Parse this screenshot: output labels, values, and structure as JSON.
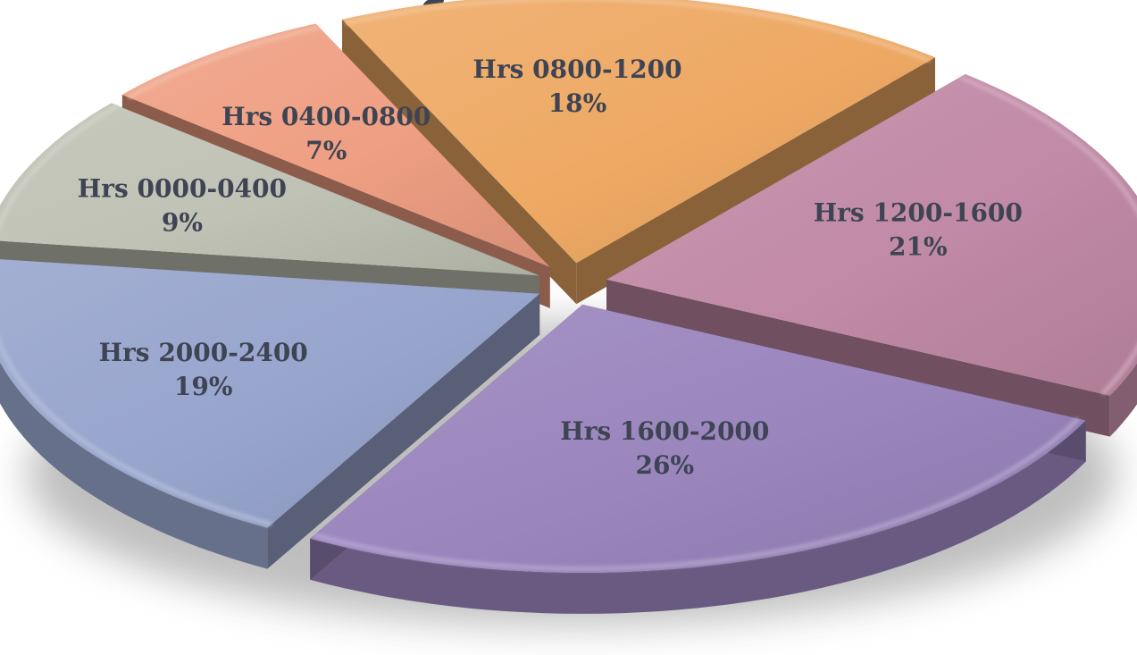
{
  "chart_data": {
    "type": "pie",
    "title": "",
    "categories": [
      "Hrs 1200-1600",
      "Hrs 1600-2000",
      "Hrs 2000-2400",
      "Hrs 0000-0400",
      "Hrs 0400-0800",
      "Hrs 0800-1200"
    ],
    "values": [
      21,
      26,
      19,
      9,
      7,
      18
    ],
    "value_labels": [
      "21%",
      "26%",
      "19%",
      "9%",
      "7%",
      "18%"
    ],
    "colors": [
      "#c18aa6",
      "#9a85bd",
      "#97a4cc",
      "#bfc2b4",
      "#ef9f83",
      "#eea964"
    ],
    "style": "3d-exploded",
    "start_angle_deg": -50,
    "direction": "clockwise",
    "legend": "none"
  }
}
